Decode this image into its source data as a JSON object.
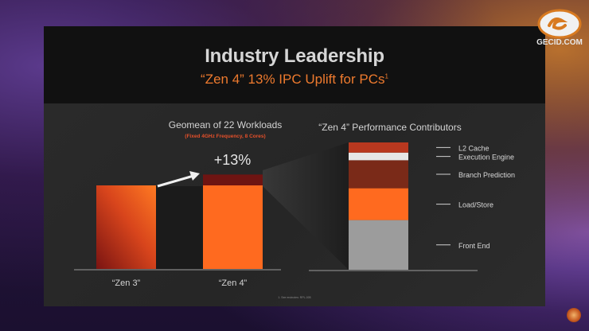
{
  "slide": {
    "title": "Industry Leadership",
    "subtitle": "“Zen 4” 13% IPC Uplift for PCs",
    "subtitle_footnote": "1",
    "footnote": "1. See endnotes: RPL-005"
  },
  "watermark": {
    "text": "GECID.COM",
    "logo_icon": "gecid-logo-icon"
  },
  "colors": {
    "orange": "#ff6a1f",
    "dark_red": "#6e1412",
    "accent": "#ee7a2e"
  },
  "chart_data": [
    {
      "type": "bar",
      "title": "Geomean of 22 Workloads",
      "subtitle": "(Fixed 4GHz Frequency, 8 Cores)",
      "categories": [
        "“Zen 3”",
        "“Zen 4”"
      ],
      "series": [
        {
          "values": [
            100,
            100
          ]
        },
        {
          "values": [
            0,
            13
          ]
        }
      ],
      "annotation": "+13%",
      "ylim": [
        0,
        150
      ],
      "grid": false
    },
    {
      "type": "bar",
      "title": "“Zen 4” Performance Contributors",
      "stacked": true,
      "segments": [
        {
          "label": "Front End",
          "value": 39
        },
        {
          "label": "Load/Store",
          "value": 25
        },
        {
          "label": "Branch Prediction",
          "value": 22
        },
        {
          "label": "Execution Engine",
          "value": 6
        },
        {
          "label": "L2 Cache",
          "value": 8
        }
      ],
      "colors": [
        "#9c9c9c",
        "#ff6a1f",
        "#7a2a18",
        "#e6e6e6",
        "#b8381f"
      ],
      "ylim": [
        0,
        100
      ],
      "grid": false
    }
  ]
}
